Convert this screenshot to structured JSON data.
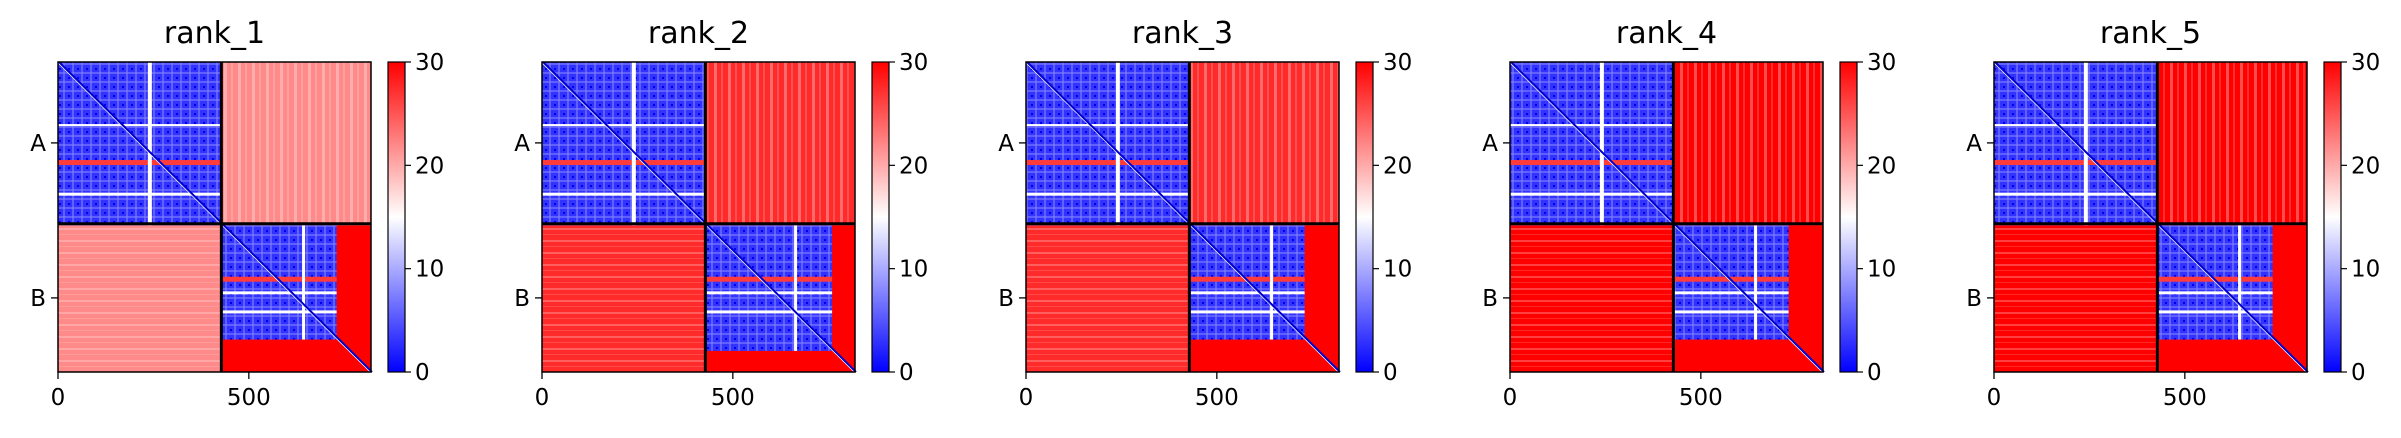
{
  "chart_data": [
    {
      "type": "heatmap",
      "title": "rank_1",
      "x_ticks": [
        0,
        500
      ],
      "xlim": [
        0,
        820
      ],
      "y_tick_labels": [
        "A",
        "B"
      ],
      "chain_boundary": 428,
      "colorbar": {
        "min": 0,
        "max": 30,
        "ticks": [
          0,
          10,
          20,
          30
        ]
      },
      "colormap": [
        "#0000ff",
        "#ffffff",
        "#ff0000"
      ],
      "inter_chain_level": "mixed",
      "b_chain_end": 730
    },
    {
      "type": "heatmap",
      "title": "rank_2",
      "x_ticks": [
        0,
        500
      ],
      "xlim": [
        0,
        820
      ],
      "y_tick_labels": [
        "A",
        "B"
      ],
      "chain_boundary": 428,
      "colorbar": {
        "min": 0,
        "max": 30,
        "ticks": [
          0,
          10,
          20,
          30
        ]
      },
      "colormap": [
        "#0000ff",
        "#ffffff",
        "#ff0000"
      ],
      "inter_chain_level": "high",
      "b_chain_end": 760
    },
    {
      "type": "heatmap",
      "title": "rank_3",
      "x_ticks": [
        0,
        500
      ],
      "xlim": [
        0,
        820
      ],
      "y_tick_labels": [
        "A",
        "B"
      ],
      "chain_boundary": 428,
      "colorbar": {
        "min": 0,
        "max": 30,
        "ticks": [
          0,
          10,
          20,
          30
        ]
      },
      "colormap": [
        "#0000ff",
        "#ffffff",
        "#ff0000"
      ],
      "inter_chain_level": "high",
      "b_chain_end": 730
    },
    {
      "type": "heatmap",
      "title": "rank_4",
      "x_ticks": [
        0,
        500
      ],
      "xlim": [
        0,
        820
      ],
      "y_tick_labels": [
        "A",
        "B"
      ],
      "chain_boundary": 428,
      "colorbar": {
        "min": 0,
        "max": 30,
        "ticks": [
          0,
          10,
          20,
          30
        ]
      },
      "colormap": [
        "#0000ff",
        "#ffffff",
        "#ff0000"
      ],
      "inter_chain_level": "max",
      "b_chain_end": 730
    },
    {
      "type": "heatmap",
      "title": "rank_5",
      "x_ticks": [
        0,
        500
      ],
      "xlim": [
        0,
        820
      ],
      "y_tick_labels": [
        "A",
        "B"
      ],
      "chain_boundary": 428,
      "colorbar": {
        "min": 0,
        "max": 30,
        "ticks": [
          0,
          10,
          20,
          30
        ]
      },
      "colormap": [
        "#0000ff",
        "#ffffff",
        "#ff0000"
      ],
      "inter_chain_level": "max",
      "b_chain_end": 730
    }
  ]
}
